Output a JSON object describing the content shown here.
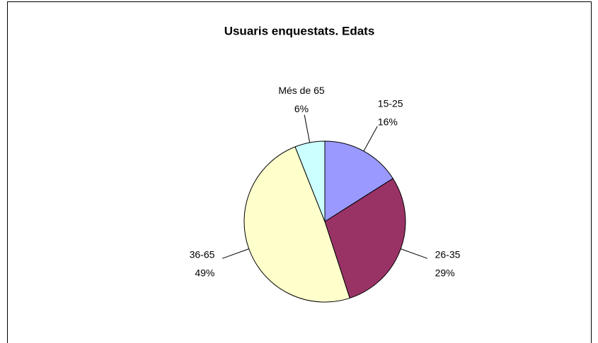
{
  "chart_data": {
    "type": "pie",
    "title": "Usuaris enquestats. Edats",
    "categories": [
      "15-25",
      "26-35",
      "36-65",
      "Més de 65"
    ],
    "values": [
      16,
      29,
      49,
      6
    ],
    "value_labels": [
      "16%",
      "29%",
      "49%",
      "6%"
    ],
    "colors": [
      "#9999ff",
      "#993366",
      "#ffffcc",
      "#ccffff"
    ]
  }
}
